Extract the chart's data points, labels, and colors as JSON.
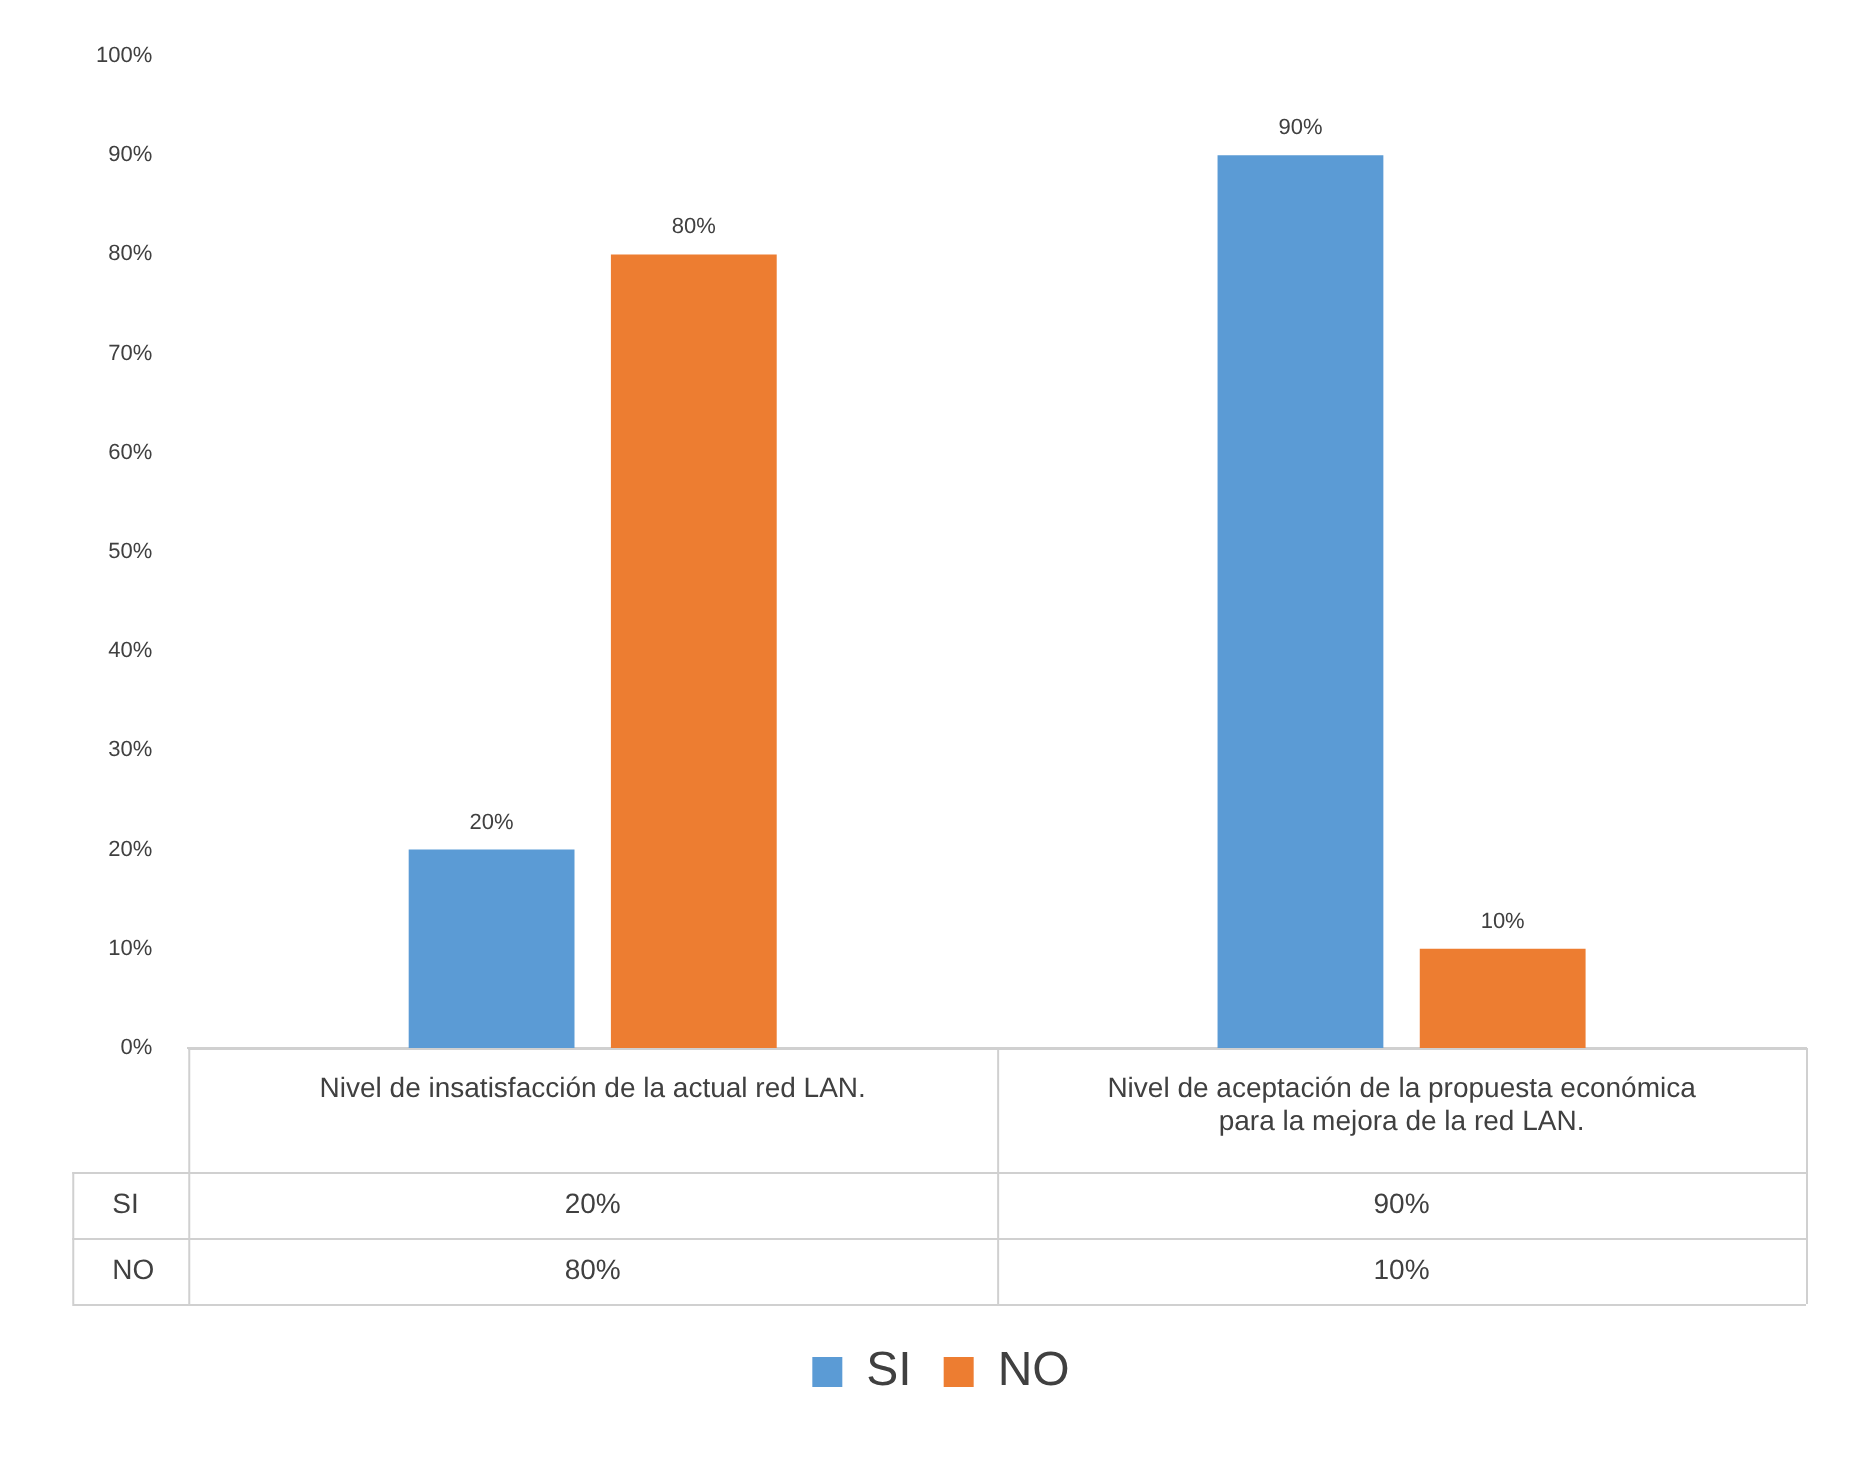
{
  "chart_data": {
    "type": "bar",
    "categories": [
      "Nivel de insatisfacción de la actual red LAN.",
      "Nivel de aceptación de la propuesta económica para la mejora de la red LAN."
    ],
    "series": [
      {
        "name": "SI",
        "color": "#5b9bd5",
        "values": [
          20,
          90
        ],
        "value_labels": [
          "20%",
          "90%"
        ]
      },
      {
        "name": "NO",
        "color": "#ed7d31",
        "values": [
          80,
          10
        ],
        "value_labels": [
          "80%",
          "10%"
        ]
      }
    ],
    "ylim": [
      0,
      100
    ],
    "yticks": [
      {
        "value": 0,
        "label": "0%"
      },
      {
        "value": 10,
        "label": "10%"
      },
      {
        "value": 20,
        "label": "20%"
      },
      {
        "value": 30,
        "label": "30%"
      },
      {
        "value": 40,
        "label": "40%"
      },
      {
        "value": 50,
        "label": "50%"
      },
      {
        "value": 60,
        "label": "60%"
      },
      {
        "value": 70,
        "label": "70%"
      },
      {
        "value": 80,
        "label": "80%"
      },
      {
        "value": 90,
        "label": "90%"
      },
      {
        "value": 100,
        "label": "100%"
      }
    ],
    "grid": false,
    "legend": "bottom"
  }
}
